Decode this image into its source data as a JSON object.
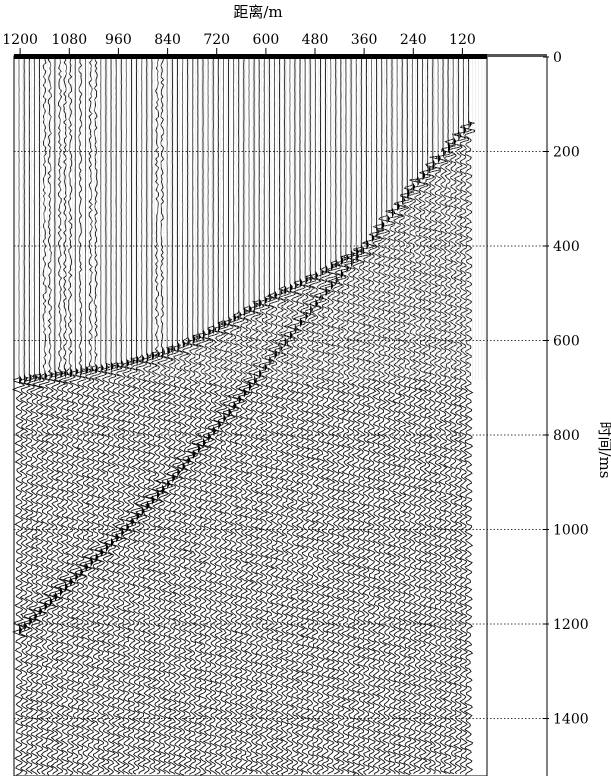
{
  "chart_data": {
    "type": "seismic_shot_gather",
    "xlabel": "距离/m",
    "ylabel": "时间/ms",
    "x_ticks": [
      1200,
      1080,
      960,
      840,
      720,
      600,
      480,
      360,
      240,
      120
    ],
    "y_ticks": [
      0,
      200,
      400,
      600,
      800,
      1000,
      1200,
      1400
    ],
    "xlim": [
      1215,
      60
    ],
    "ylim": [
      0,
      1500
    ],
    "grid": "dotted horizontal lines every 200 ms",
    "first_break": {
      "x": [
        105,
        240,
        360,
        480,
        600,
        720,
        840,
        960,
        1080,
        1200
      ],
      "t": [
        140,
        270,
        400,
        460,
        510,
        570,
        620,
        650,
        665,
        680
      ]
    },
    "direct_wave": {
      "x": [
        105,
        240,
        360,
        480,
        600,
        720,
        840,
        960,
        1080,
        1200
      ],
      "t": [
        140,
        270,
        400,
        520,
        650,
        780,
        900,
        1010,
        1110,
        1210
      ]
    },
    "noisy_traces_x": [
      1140,
      1125,
      1105,
      1090,
      1075,
      1055,
      1020,
      860
    ]
  }
}
